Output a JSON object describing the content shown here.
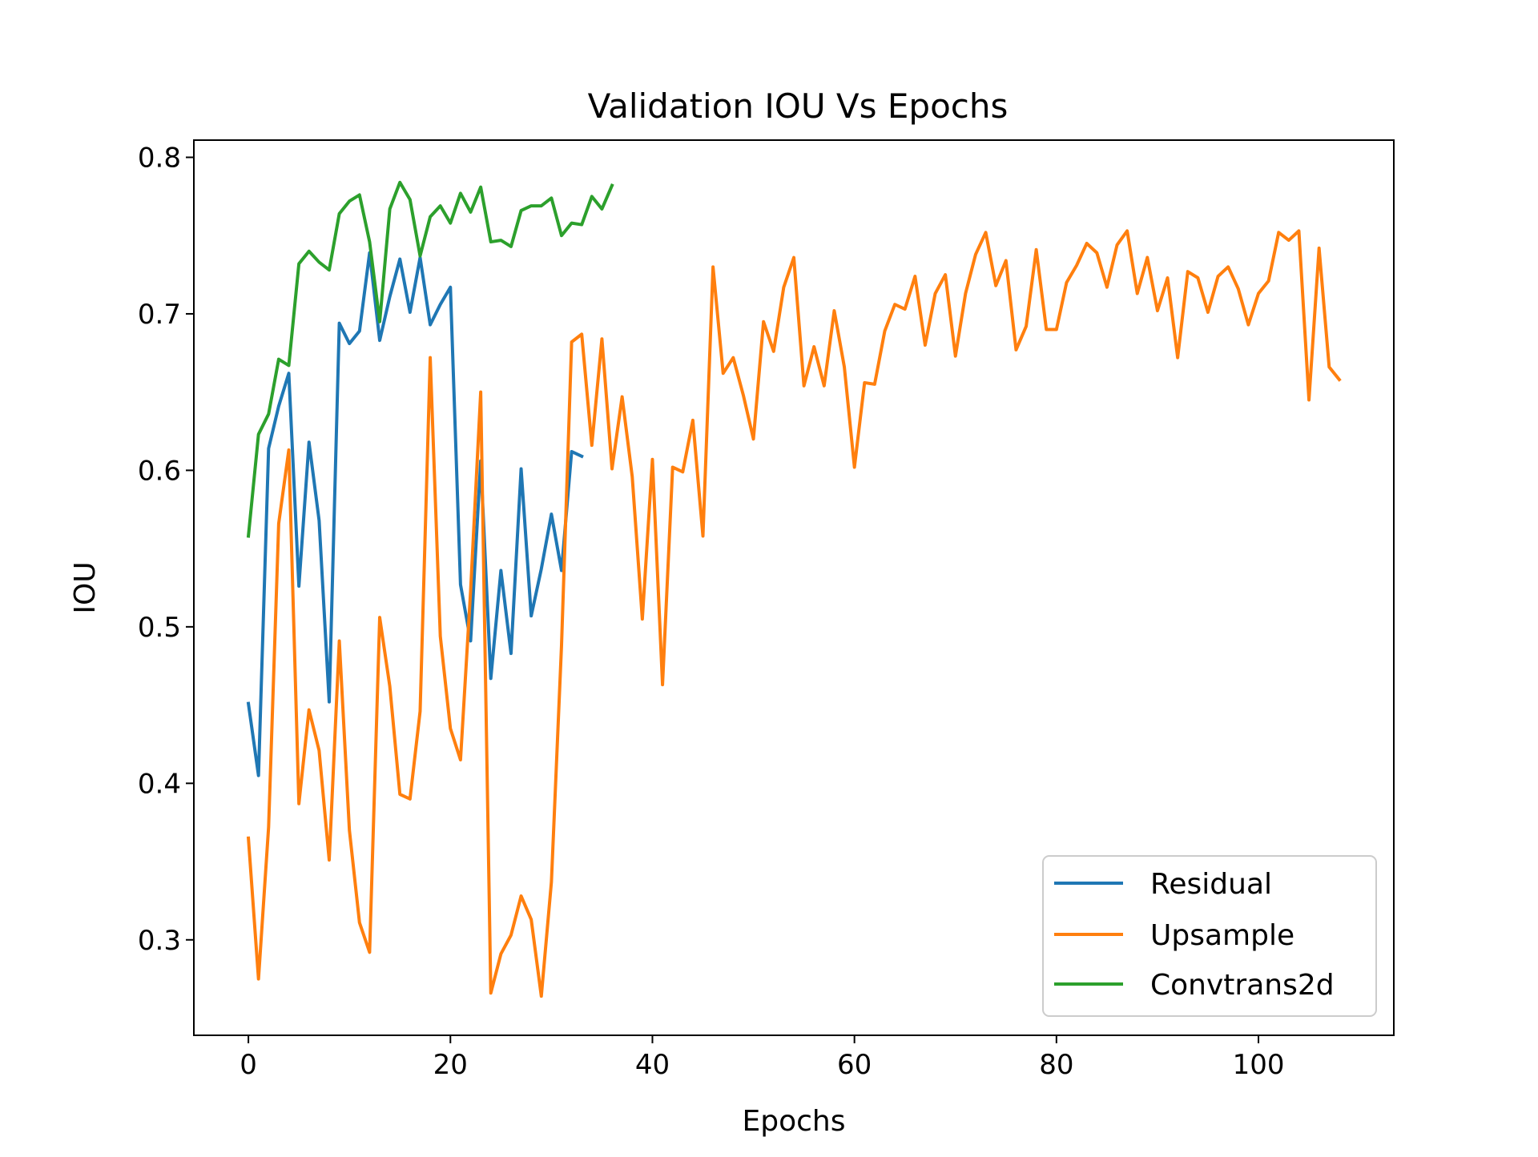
{
  "chart_data": {
    "type": "line",
    "title": "Validation IOU Vs Epochs",
    "xlabel": "Epochs",
    "ylabel": "IOU",
    "xlim": [
      -5.4,
      113.4
    ],
    "ylim": [
      0.239,
      0.811
    ],
    "xticks": [
      0,
      20,
      40,
      60,
      80,
      100
    ],
    "yticks": [
      0.3,
      0.4,
      0.5,
      0.6,
      0.7,
      0.8
    ],
    "xtick_labels": [
      "0",
      "20",
      "40",
      "60",
      "80",
      "100"
    ],
    "ytick_labels": [
      "0.3",
      "0.4",
      "0.5",
      "0.6",
      "0.7",
      "0.8"
    ],
    "grid": false,
    "legend_position": "lower-right",
    "series": [
      {
        "name": "Residual",
        "color": "#1f77b4",
        "x_start": 0,
        "values": [
          0.451,
          0.405,
          0.614,
          0.641,
          0.662,
          0.526,
          0.618,
          0.568,
          0.452,
          0.694,
          0.681,
          0.689,
          0.739,
          0.683,
          0.711,
          0.735,
          0.701,
          0.736,
          0.693,
          0.706,
          0.717,
          0.527,
          0.491,
          0.606,
          0.467,
          0.536,
          0.483,
          0.601,
          0.507,
          0.537,
          0.572,
          0.536,
          0.612,
          0.609
        ]
      },
      {
        "name": "Upsample",
        "color": "#ff7f0e",
        "x_start": 0,
        "values": [
          0.365,
          0.275,
          0.372,
          0.566,
          0.613,
          0.387,
          0.447,
          0.421,
          0.351,
          0.491,
          0.37,
          0.311,
          0.292,
          0.506,
          0.462,
          0.393,
          0.39,
          0.446,
          0.672,
          0.494,
          0.435,
          0.415,
          0.523,
          0.65,
          0.266,
          0.291,
          0.303,
          0.328,
          0.313,
          0.264,
          0.337,
          0.488,
          0.682,
          0.687,
          0.616,
          0.684,
          0.601,
          0.647,
          0.596,
          0.505,
          0.607,
          0.463,
          0.602,
          0.599,
          0.632,
          0.558,
          0.73,
          0.662,
          0.672,
          0.648,
          0.62,
          0.695,
          0.676,
          0.717,
          0.736,
          0.654,
          0.679,
          0.654,
          0.702,
          0.666,
          0.602,
          0.656,
          0.655,
          0.689,
          0.706,
          0.703,
          0.724,
          0.68,
          0.713,
          0.725,
          0.673,
          0.713,
          0.738,
          0.752,
          0.718,
          0.734,
          0.677,
          0.692,
          0.741,
          0.69,
          0.69,
          0.72,
          0.731,
          0.745,
          0.739,
          0.717,
          0.744,
          0.753,
          0.713,
          0.736,
          0.702,
          0.723,
          0.672,
          0.727,
          0.723,
          0.701,
          0.724,
          0.73,
          0.716,
          0.693,
          0.713,
          0.721,
          0.752,
          0.747,
          0.753,
          0.645,
          0.742,
          0.666,
          0.658
        ]
      },
      {
        "name": "Convtrans2d",
        "color": "#2ca02c",
        "x_start": 0,
        "values": [
          0.558,
          0.623,
          0.636,
          0.671,
          0.667,
          0.732,
          0.74,
          0.733,
          0.728,
          0.764,
          0.772,
          0.776,
          0.746,
          0.695,
          0.767,
          0.784,
          0.773,
          0.737,
          0.762,
          0.769,
          0.758,
          0.777,
          0.765,
          0.781,
          0.746,
          0.747,
          0.743,
          0.766,
          0.769,
          0.769,
          0.774,
          0.75,
          0.758,
          0.757,
          0.775,
          0.767,
          0.782
        ]
      }
    ]
  }
}
